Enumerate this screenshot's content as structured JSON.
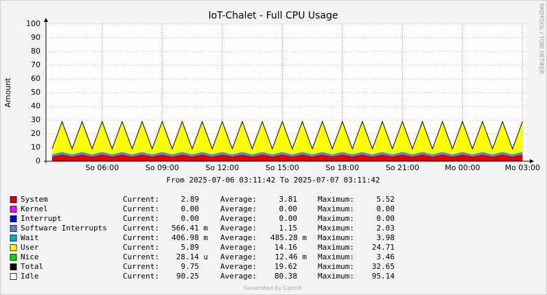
{
  "chart_data": {
    "type": "stacked-area",
    "title": "IoT-Chalet - Full CPU Usage",
    "y_label": "Amount",
    "side_label": "RRDTOOL / TOBI OETIKER",
    "range_text": "From 2025-07-06 03:11:42 To 2025-07-07 03:11:42",
    "footer": "Generated by Cacti®",
    "stat_labels": [
      "Current:",
      "Average:",
      "Maximum:"
    ],
    "grid": true,
    "xlim": [
      "2025-07-06 03:11:42",
      "2025-07-07 03:11:42"
    ],
    "xticks": [
      {
        "value": "2025-07-06 06:00",
        "label": "So 06:00"
      },
      {
        "value": "2025-07-06 09:00",
        "label": "So 09:00"
      },
      {
        "value": "2025-07-06 12:00",
        "label": "So 12:00"
      },
      {
        "value": "2025-07-06 15:00",
        "label": "So 15:00"
      },
      {
        "value": "2025-07-06 18:00",
        "label": "So 18:00"
      },
      {
        "value": "2025-07-06 21:00",
        "label": "So 21:00"
      },
      {
        "value": "2025-07-07 00:00",
        "label": "Mo 00:00"
      },
      {
        "value": "2025-07-07 03:00",
        "label": "Mo 03:00"
      }
    ],
    "ylim": [
      0,
      100
    ],
    "yticks": [
      0,
      10,
      20,
      30,
      40,
      50,
      60,
      70,
      80,
      90,
      100
    ],
    "x": [
      "2025-07-06 03:30",
      "2025-07-06 04:00",
      "2025-07-06 04:30",
      "2025-07-06 05:00",
      "2025-07-06 05:30",
      "2025-07-06 06:00",
      "2025-07-06 06:30",
      "2025-07-06 07:00",
      "2025-07-06 07:30",
      "2025-07-06 08:00",
      "2025-07-06 08:30",
      "2025-07-06 09:00",
      "2025-07-06 09:30",
      "2025-07-06 10:00",
      "2025-07-06 10:30",
      "2025-07-06 11:00",
      "2025-07-06 11:30",
      "2025-07-06 12:00",
      "2025-07-06 12:30",
      "2025-07-06 13:00",
      "2025-07-06 13:30",
      "2025-07-06 14:00",
      "2025-07-06 14:30",
      "2025-07-06 15:00",
      "2025-07-06 15:30",
      "2025-07-06 16:00",
      "2025-07-06 16:30",
      "2025-07-06 17:00",
      "2025-07-06 17:30",
      "2025-07-06 18:00",
      "2025-07-06 18:30",
      "2025-07-06 19:00",
      "2025-07-06 19:30",
      "2025-07-06 20:00",
      "2025-07-06 20:30",
      "2025-07-06 21:00",
      "2025-07-06 21:30",
      "2025-07-06 22:00",
      "2025-07-06 22:30",
      "2025-07-06 23:00",
      "2025-07-06 23:30",
      "2025-07-07 00:00",
      "2025-07-07 00:30",
      "2025-07-07 01:00",
      "2025-07-07 01:30",
      "2025-07-07 02:00",
      "2025-07-07 02:30",
      "2025-07-07 03:00"
    ],
    "series": [
      {
        "name": "System",
        "color": "#e00000",
        "kind": "area",
        "current": "2.89",
        "average": "3.81",
        "maximum": "5.52",
        "values": [
          3.5,
          5,
          3.5,
          5,
          3.5,
          5,
          3.5,
          5,
          3.5,
          5,
          3.5,
          5,
          3.5,
          5,
          3.5,
          5,
          3.5,
          5,
          3.5,
          5,
          3.5,
          5,
          3.5,
          5,
          3.5,
          5,
          3.5,
          5,
          3.5,
          5,
          3.5,
          5,
          3.5,
          5,
          3.5,
          5,
          3.5,
          5,
          3.5,
          5,
          3.5,
          5,
          3.5,
          5,
          3.5,
          5,
          3.5,
          5
        ]
      },
      {
        "name": "Kernel",
        "color": "#ff00ff",
        "kind": "area",
        "current": "0.00",
        "average": "0.00",
        "maximum": "0.00",
        "values": [
          0,
          0,
          0,
          0,
          0,
          0,
          0,
          0,
          0,
          0,
          0,
          0,
          0,
          0,
          0,
          0,
          0,
          0,
          0,
          0,
          0,
          0,
          0,
          0,
          0,
          0,
          0,
          0,
          0,
          0,
          0,
          0,
          0,
          0,
          0,
          0,
          0,
          0,
          0,
          0,
          0,
          0,
          0,
          0,
          0,
          0,
          0,
          0
        ]
      },
      {
        "name": "Interrupt",
        "color": "#0000ee",
        "kind": "area",
        "current": "0.00",
        "average": "0.00",
        "maximum": "0.00",
        "values": [
          0,
          0,
          0,
          0,
          0,
          0,
          0,
          0,
          0,
          0,
          0,
          0,
          0,
          0,
          0,
          0,
          0,
          0,
          0,
          0,
          0,
          0,
          0,
          0,
          0,
          0,
          0,
          0,
          0,
          0,
          0,
          0,
          0,
          0,
          0,
          0,
          0,
          0,
          0,
          0,
          0,
          0,
          0,
          0,
          0,
          0,
          0,
          0
        ]
      },
      {
        "name": "Software Interrupts",
        "color": "#5a86dc",
        "kind": "area",
        "current": "566.41 m",
        "average": "1.15",
        "maximum": "2.03",
        "values": [
          1,
          1.2,
          1,
          1.2,
          1,
          1.2,
          1,
          1.2,
          1,
          1.2,
          1,
          1.2,
          1,
          1.2,
          1,
          1.2,
          1,
          1.2,
          1,
          1.2,
          1,
          1.2,
          1,
          1.2,
          1,
          1.2,
          1,
          1.2,
          1,
          1.2,
          1,
          1.2,
          1,
          1.2,
          1,
          1.2,
          1,
          1.2,
          1,
          1.2,
          1,
          1.2,
          1,
          1.2,
          1,
          1.2,
          1,
          1.2
        ]
      },
      {
        "name": "Wait",
        "color": "#00b0c8",
        "kind": "area",
        "current": "406.98 m",
        "average": "485.28 m",
        "maximum": "3.98",
        "values": [
          0.5,
          0.6,
          0.5,
          0.6,
          0.5,
          0.6,
          0.5,
          0.6,
          0.5,
          0.6,
          0.5,
          0.6,
          0.5,
          0.6,
          0.5,
          0.6,
          0.5,
          0.6,
          0.5,
          0.6,
          0.5,
          0.6,
          0.5,
          0.6,
          0.5,
          0.6,
          0.5,
          0.6,
          0.5,
          0.6,
          0.5,
          0.6,
          0.5,
          0.6,
          0.5,
          0.6,
          0.5,
          0.6,
          0.5,
          0.6,
          0.5,
          0.6,
          0.5,
          0.6,
          0.5,
          0.6,
          0.5,
          0.6
        ]
      },
      {
        "name": "User",
        "color": "#ffff00",
        "kind": "area",
        "current": "5.89",
        "average": "14.16",
        "maximum": "24.71",
        "values": [
          4,
          22,
          4,
          22,
          4,
          22,
          4,
          22,
          4,
          22,
          4,
          22,
          4,
          22,
          4,
          22,
          4,
          22,
          4,
          22,
          4,
          22,
          4,
          22,
          4,
          22,
          4,
          22,
          4,
          22,
          4,
          22,
          4,
          22,
          4,
          22,
          4,
          22,
          4,
          22,
          4,
          22,
          4,
          22,
          4,
          22,
          4,
          22
        ]
      },
      {
        "name": "Nice",
        "color": "#00e000",
        "kind": "area",
        "current": "28.14 u",
        "average": "12.46 m",
        "maximum": "3.46",
        "values": [
          0,
          0.1,
          0,
          0.1,
          0,
          0.1,
          0,
          0.1,
          0,
          0.1,
          0,
          0.1,
          0,
          0.1,
          0,
          0.1,
          0,
          0.1,
          0,
          0.1,
          0,
          0.1,
          0,
          0.1,
          0,
          0.1,
          0,
          0.1,
          0,
          0.1,
          0,
          0.1,
          0,
          0.1,
          0,
          0.1,
          0,
          0.1,
          0,
          0.1,
          0,
          0.1,
          0,
          0.1,
          0,
          0.1,
          0,
          0.1
        ]
      },
      {
        "name": "Total",
        "color": "#000000",
        "kind": "line",
        "current": "9.75",
        "average": "19.62",
        "maximum": "32.65",
        "values": [
          9,
          28.9,
          9,
          28.9,
          9,
          28.9,
          9,
          28.9,
          9,
          28.9,
          9,
          28.9,
          9,
          28.9,
          9,
          28.9,
          9,
          28.9,
          9,
          28.9,
          9,
          28.9,
          9,
          28.9,
          9,
          28.9,
          9,
          28.9,
          9,
          28.9,
          9,
          28.9,
          9,
          28.9,
          9,
          28.9,
          9,
          28.9,
          9,
          28.9,
          9,
          28.9,
          9,
          28.9,
          9,
          28.9,
          9,
          28.9
        ]
      },
      {
        "name": "Idle",
        "color": "#ffffff",
        "kind": "none",
        "current": "90.25",
        "average": "80.38",
        "maximum": "95.14"
      }
    ]
  }
}
